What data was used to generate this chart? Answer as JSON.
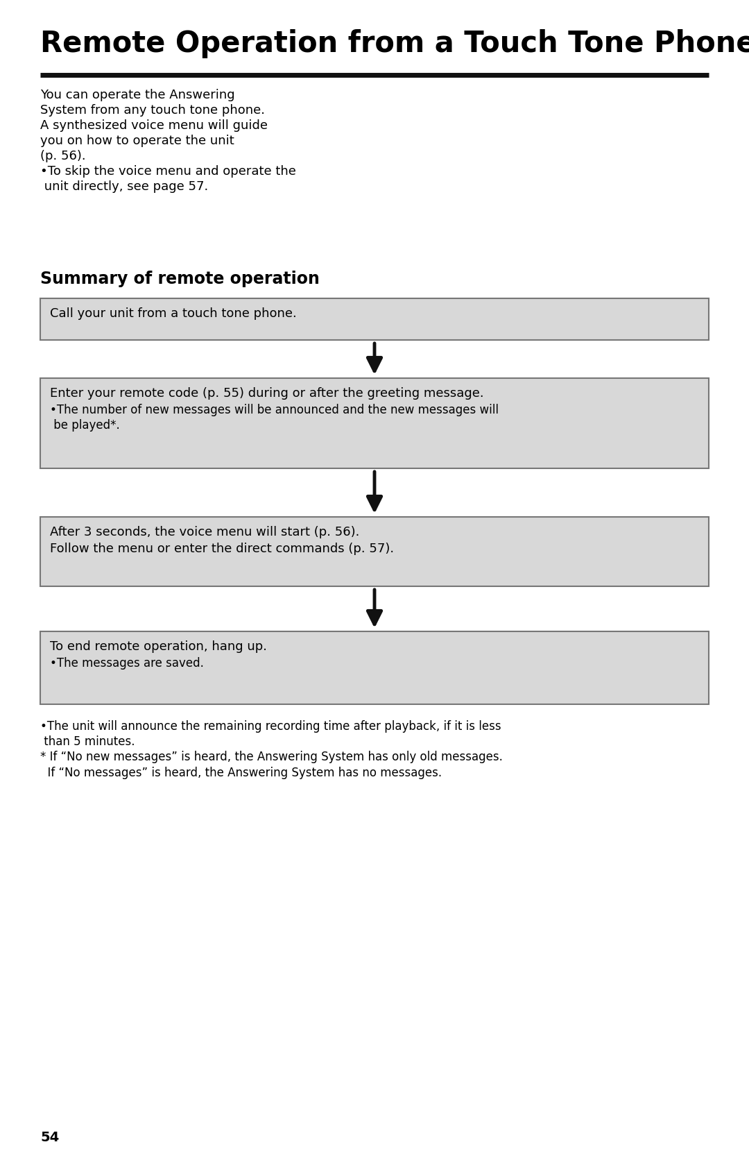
{
  "title": "Remote Operation from a Touch Tone Phone",
  "background_color": "#ffffff",
  "page_number": "54",
  "intro_text_lines": [
    "You can operate the Answering",
    "System from any touch tone phone.",
    "A synthesized voice menu will guide",
    "you on how to operate the unit",
    "(p. 56).",
    "•To skip the voice menu and operate the",
    " unit directly, see page 57."
  ],
  "section_title": "Summary of remote operation",
  "boxes": [
    {
      "main_text": "Call your unit from a touch tone phone.",
      "sub_texts": []
    },
    {
      "main_text": "Enter your remote code (p. 55) during or after the greeting message.",
      "sub_texts": [
        "•The number of new messages will be announced and the new messages will\n be played*."
      ]
    },
    {
      "main_text": "After 3 seconds, the voice menu will start (p. 56).\nFollow the menu or enter the direct commands (p. 57).",
      "sub_texts": []
    },
    {
      "main_text": "To end remote operation, hang up.",
      "sub_texts": [
        "•The messages are saved."
      ]
    }
  ],
  "footnotes": [
    "•The unit will announce the remaining recording time after playback, if it is less",
    " than 5 minutes.",
    "* If “No new messages” is heard, the Answering System has only old messages.",
    "  If “No messages” is heard, the Answering System has no messages."
  ],
  "box_bg_color": "#d8d8d8",
  "box_border_color": "#777777",
  "arrow_color": "#111111",
  "text_color": "#000000",
  "title_font_size": 30,
  "section_title_font_size": 17,
  "body_font_size": 13,
  "sub_font_size": 12,
  "footnote_font_size": 12,
  "page_num_font_size": 14
}
